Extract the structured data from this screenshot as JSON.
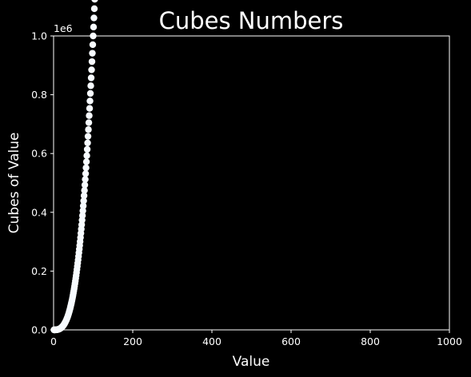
{
  "chart_data": {
    "type": "scatter",
    "title": "Cubes Numbers",
    "xlabel": "Value",
    "ylabel": "Cubes of Value",
    "y_offset_label": "1e6",
    "xlim": [
      0,
      1000
    ],
    "ylim": [
      0,
      1.0
    ],
    "y_scale_factor": 1000000,
    "x_ticks": [
      0,
      200,
      400,
      600,
      800,
      1000
    ],
    "x_tick_labels": [
      "0",
      "200",
      "400",
      "600",
      "800",
      "1000"
    ],
    "y_ticks": [
      0,
      0.2,
      0.4,
      0.6,
      0.8,
      1.0
    ],
    "y_tick_labels": [
      "0.0",
      "0.2",
      "0.4",
      "0.6",
      "0.8",
      "1.0"
    ],
    "grid": false,
    "colormap": "Blues",
    "background": "#000000",
    "foreground": "#ffffff",
    "series": [
      {
        "x_range": [
          1,
          1000
        ],
        "function": "cube",
        "color_by": "y"
      }
    ]
  }
}
